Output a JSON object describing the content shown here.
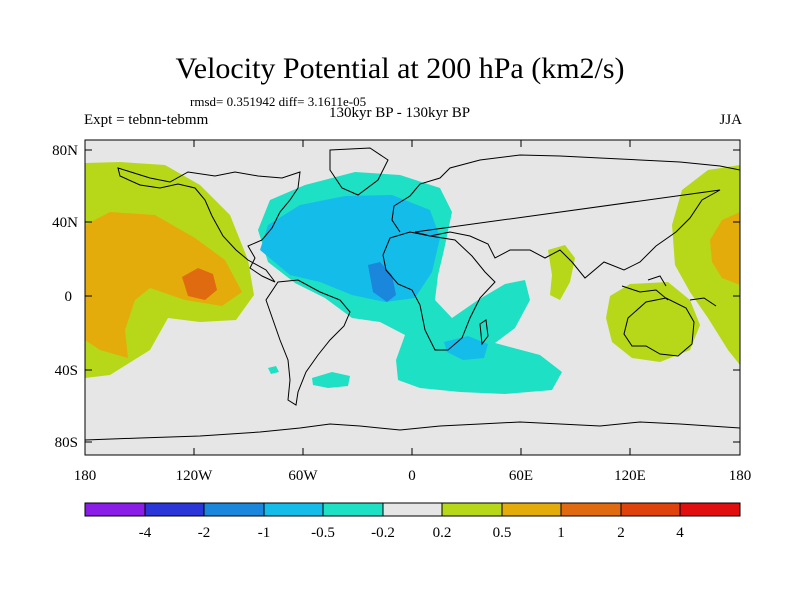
{
  "title": "Velocity Potential at 200 hPa (km2/s)",
  "stats": "rmsd= 0.351942 diff= 3.1611e-05",
  "left_label": "Expt = tebnn-tebmm",
  "center_label": "130kyr BP - 130kyr BP",
  "right_label": "JJA",
  "lat_ticks": [
    "80N",
    "40N",
    "0",
    "40S",
    "80S"
  ],
  "lon_ticks": [
    "180",
    "120W",
    "60W",
    "0",
    "60E",
    "120E",
    "180"
  ],
  "colorbar": {
    "labels": [
      "-4",
      "-2",
      "-1",
      "-0.5",
      "-0.2",
      "0.2",
      "0.5",
      "1",
      "2",
      "4"
    ],
    "colors": [
      "#8a1ee6",
      "#2a36d8",
      "#1a86dc",
      "#14bcea",
      "#1ee0c4",
      "#e6e6e6",
      "#b6d818",
      "#e4ac0a",
      "#e06a10",
      "#e0420c",
      "#e00e0e"
    ]
  },
  "colors": {
    "neutral": "#e6e6e6",
    "cyan": "#1ee0c4",
    "light_blue": "#14bcea",
    "mid_blue": "#1a86dc",
    "green": "#b6d818",
    "orange": "#e4ac0a",
    "dark_orange": "#e06a10"
  }
}
